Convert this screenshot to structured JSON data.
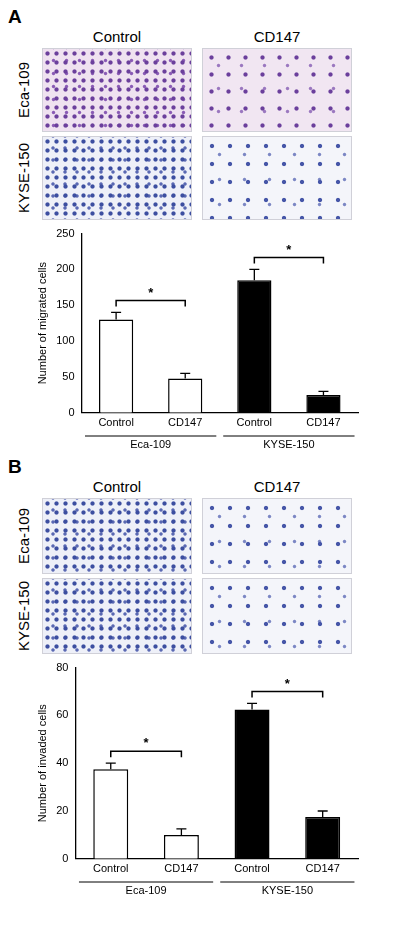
{
  "panels": [
    {
      "letter": "A",
      "columns": [
        "Control",
        "CD147"
      ],
      "rows": [
        "Eca-109",
        "KYSE-150"
      ]
    },
    {
      "letter": "B",
      "columns": [
        "Control",
        "CD147"
      ],
      "rows": [
        "Eca-109",
        "KYSE-150"
      ]
    }
  ],
  "chart_data": [
    {
      "type": "bar",
      "y_label": "Number of migrated cells",
      "categories": [
        "Control",
        "CD147",
        "Control",
        "CD147"
      ],
      "series": [
        {
          "name": "Eca-109",
          "color": "#ffffff",
          "values": [
            130,
            48,
            null,
            null
          ],
          "errors": [
            10,
            7,
            null,
            null
          ]
        },
        {
          "name": "KYSE-150",
          "color": "#000000",
          "values": [
            null,
            null,
            185,
            25
          ],
          "errors": [
            null,
            null,
            15,
            5
          ]
        }
      ],
      "ylim": [
        0,
        250
      ],
      "yticks": [
        0,
        50,
        100,
        150,
        200,
        250
      ],
      "grid": false,
      "annotations": [
        {
          "text": "*",
          "from": 0,
          "to": 1
        },
        {
          "text": "*",
          "from": 2,
          "to": 3
        }
      ]
    },
    {
      "type": "bar",
      "y_label": "Number of invaded cells",
      "categories": [
        "Control",
        "CD147",
        "Control",
        "CD147"
      ],
      "series": [
        {
          "name": "Eca-109",
          "color": "#ffffff",
          "values": [
            37.5,
            10,
            null,
            null
          ],
          "errors": [
            2.5,
            2.5,
            null,
            null
          ]
        },
        {
          "name": "KYSE-150",
          "color": "#000000",
          "values": [
            null,
            null,
            62.5,
            17.5
          ],
          "errors": [
            null,
            null,
            2.5,
            2.5
          ]
        }
      ],
      "ylim": [
        0,
        80
      ],
      "yticks": [
        0,
        20,
        40,
        60,
        80
      ],
      "grid": false,
      "annotations": [
        {
          "text": "*",
          "from": 0,
          "to": 1
        },
        {
          "text": "*",
          "from": 2,
          "to": 3
        }
      ]
    }
  ]
}
